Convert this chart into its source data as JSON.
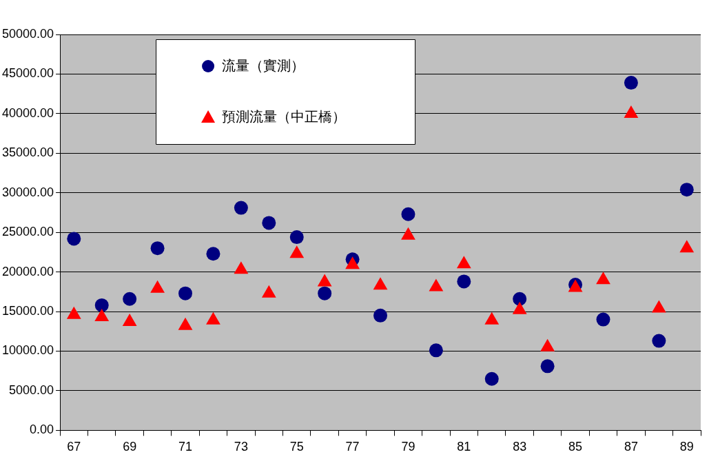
{
  "chart_data": {
    "type": "scatter",
    "categories": [
      "67",
      null,
      "69",
      null,
      "71",
      null,
      "73",
      null,
      "75",
      null,
      "77",
      null,
      "79",
      null,
      "81",
      null,
      "83",
      null,
      "85",
      null,
      "87",
      null,
      "89"
    ],
    "series": [
      {
        "name": "流量（實測）",
        "color": "#000080",
        "marker": "circle",
        "values": [
          24200,
          15800,
          16600,
          23000,
          17300,
          22300,
          28100,
          26200,
          24400,
          17300,
          21600,
          14500,
          27300,
          10100,
          18800,
          6500,
          16600,
          8100,
          18400,
          14000,
          43900,
          11300,
          30400
        ]
      },
      {
        "name": "預測流量（中正橋）",
        "color": "#ff0000",
        "marker": "triangle",
        "values": [
          14600,
          14300,
          13700,
          17900,
          13200,
          13900,
          20300,
          17300,
          22300,
          18700,
          20900,
          18300,
          24600,
          18100,
          21000,
          13900,
          15200,
          10500,
          18000,
          19000,
          40000,
          15400,
          23000
        ]
      }
    ],
    "ylim": [
      0,
      50000
    ],
    "yticks": [
      {
        "value": 0,
        "label": "0.00"
      },
      {
        "value": 5000,
        "label": "5000.00"
      },
      {
        "value": 10000,
        "label": "10000.00"
      },
      {
        "value": 15000,
        "label": "15000.00"
      },
      {
        "value": 20000,
        "label": "20000.00"
      },
      {
        "value": 25000,
        "label": "25000.00"
      },
      {
        "value": 30000,
        "label": "30000.00"
      },
      {
        "value": 35000,
        "label": "35000.00"
      },
      {
        "value": 40000,
        "label": "40000.00"
      },
      {
        "value": 45000,
        "label": "45000.00"
      },
      {
        "value": 50000,
        "label": "50000.00"
      }
    ],
    "grid": "y",
    "legend": "top left"
  }
}
